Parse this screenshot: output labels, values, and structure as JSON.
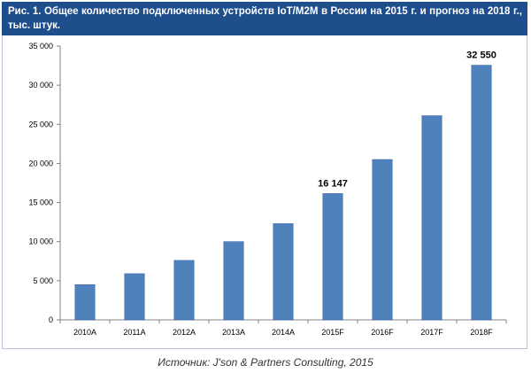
{
  "title": "Рис. 1. Общее количество подключенных устройств IoT/M2M в России на 2015 г. и прогноз на 2018 г., тыс. штук.",
  "source": "Источник: J'son & Partners Consulting, 2015",
  "colors": {
    "bar": "#4f81bd",
    "bar_border": "#3a66a0",
    "title_bg": "#1f4e8c",
    "axis": "#808080"
  },
  "chart_data": {
    "type": "bar",
    "title": "Рис. 1. Общее количество подключенных устройств IoT/M2M в России на 2015 г. и прогноз на 2018 г., тыс. штук.",
    "xlabel": "",
    "ylabel": "",
    "categories": [
      "2010A",
      "2011A",
      "2012A",
      "2013A",
      "2014A",
      "2015F",
      "2016F",
      "2017F",
      "2018F"
    ],
    "values": [
      4500,
      5900,
      7600,
      10000,
      12300,
      16147,
      20500,
      26100,
      32550
    ],
    "ylim": [
      0,
      35000
    ],
    "yticks": [
      0,
      5000,
      10000,
      15000,
      20000,
      25000,
      30000,
      35000
    ],
    "ytick_labels": [
      "0",
      "5 000",
      "10 000",
      "15 000",
      "20 000",
      "25 000",
      "30 000",
      "35 000"
    ],
    "data_labels": [
      {
        "category": "2015F",
        "text": "16 147"
      },
      {
        "category": "2018F",
        "text": "32 550"
      }
    ],
    "grid": false,
    "legend": "none"
  }
}
